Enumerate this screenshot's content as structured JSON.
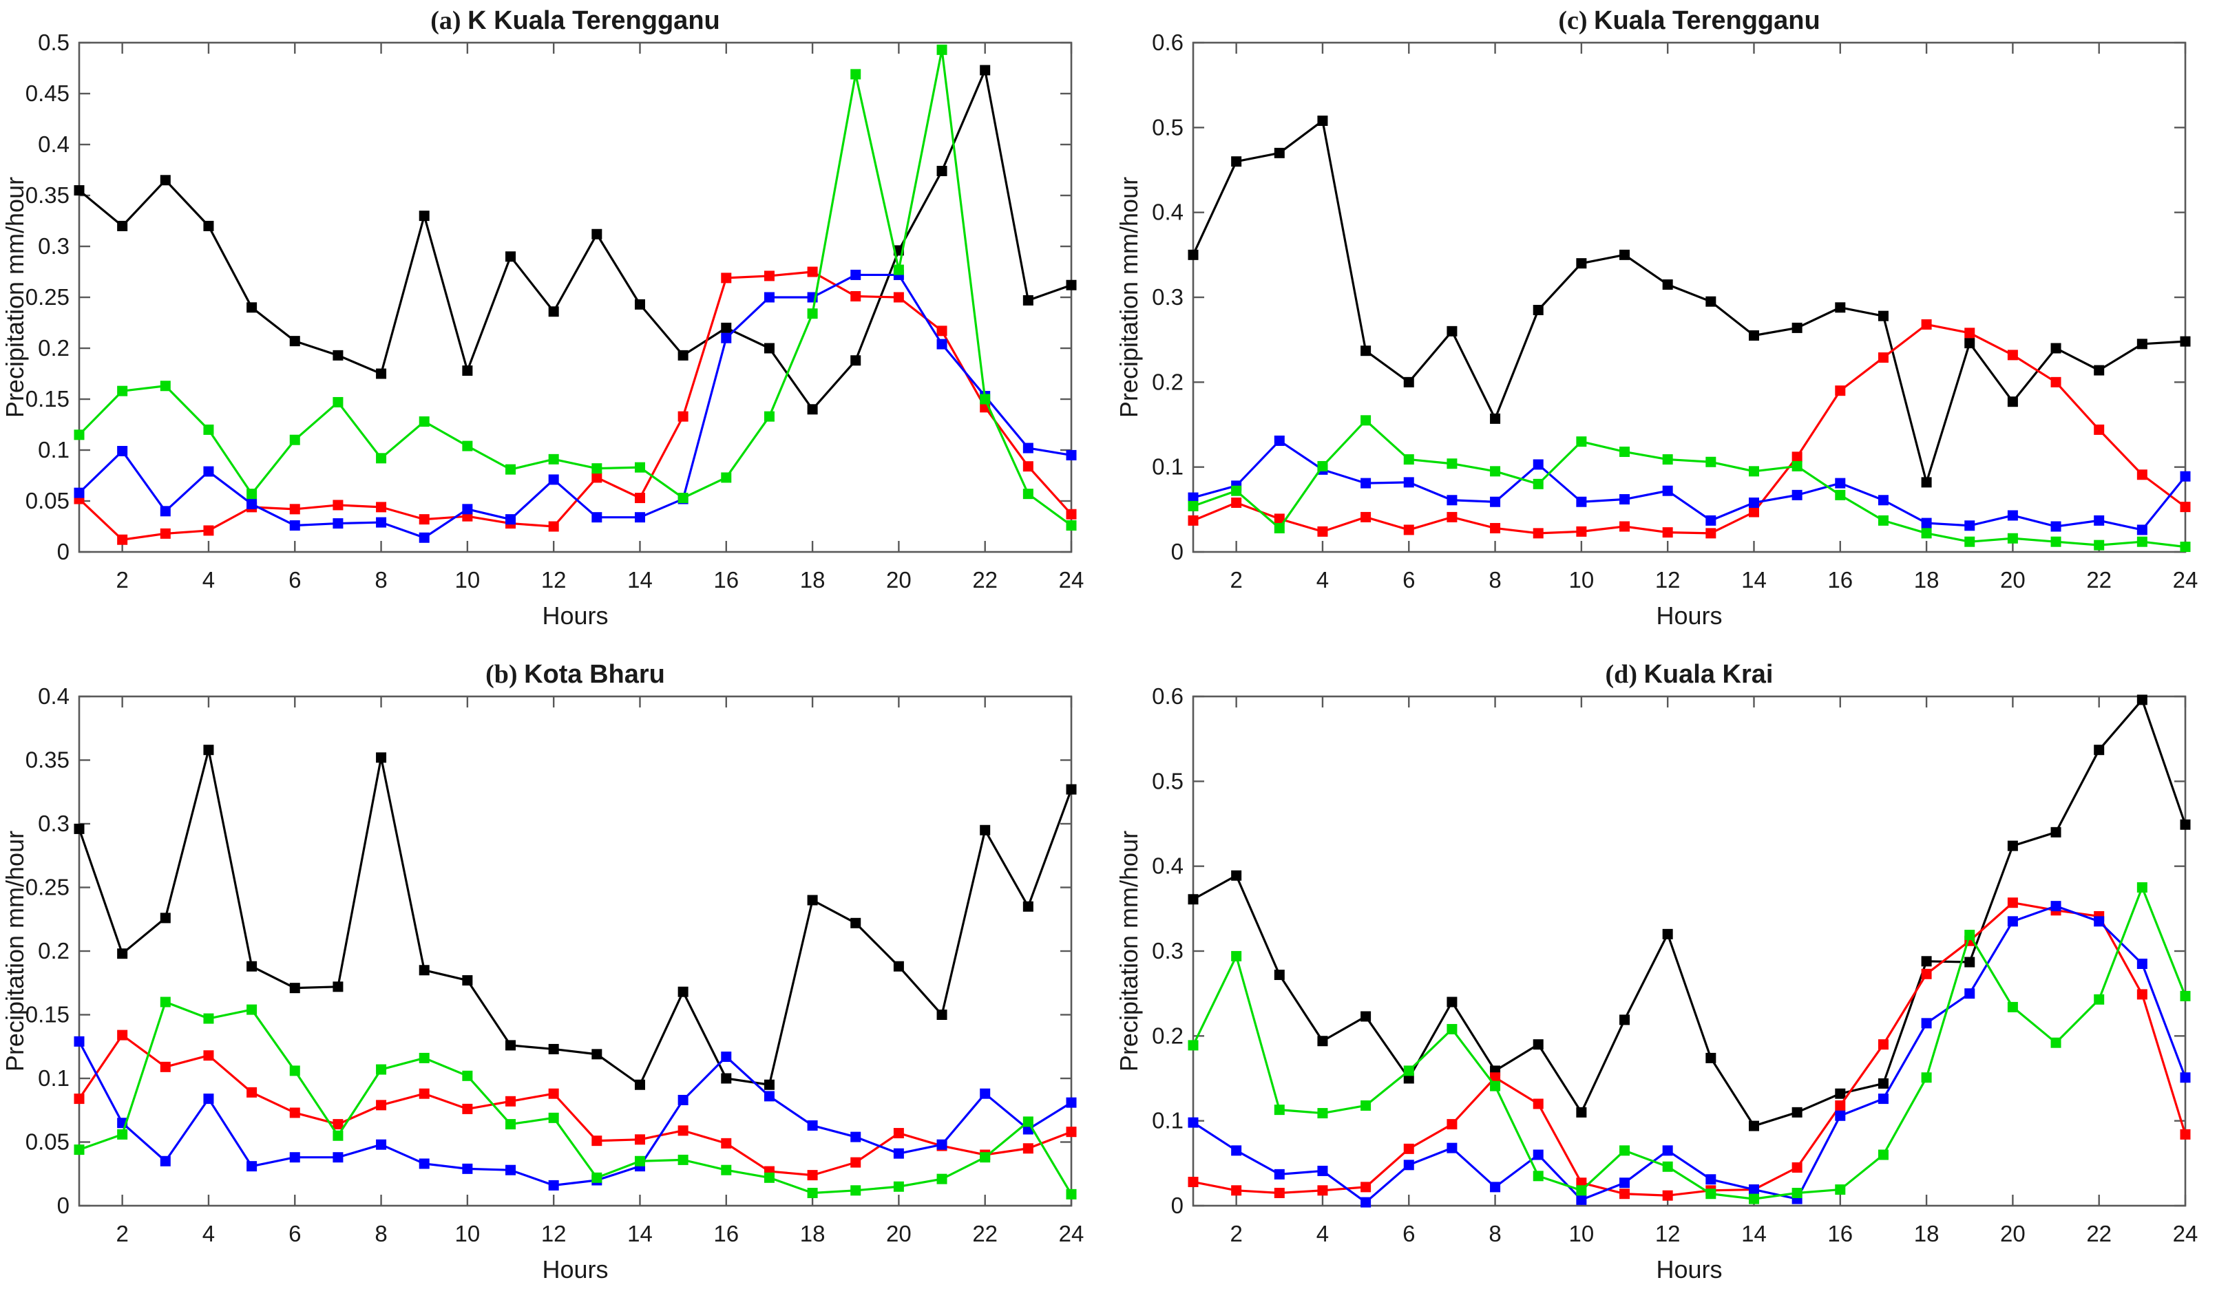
{
  "figure": {
    "background": "#ffffff",
    "axis_color": "#595959",
    "text_color": "#1a1a1a"
  },
  "chart_data": [
    {
      "id": "a",
      "type": "line",
      "title_prefix": "(a)",
      "title": "K Kuala Terengganu",
      "xlabel": "Hours",
      "ylabel": "Precipitation mm/hour",
      "xlim": [
        1,
        24
      ],
      "ylim": [
        0,
        0.5
      ],
      "ystep": 0.05,
      "xticks": [
        2,
        4,
        6,
        8,
        10,
        12,
        14,
        16,
        18,
        20,
        22,
        24
      ],
      "x": [
        1,
        2,
        3,
        4,
        5,
        6,
        7,
        8,
        9,
        10,
        11,
        12,
        13,
        14,
        15,
        16,
        17,
        18,
        19,
        20,
        21,
        22,
        23,
        24
      ],
      "grid": false,
      "legend": "none",
      "series": [
        {
          "name": "black",
          "color": "#000000",
          "values": [
            0.355,
            0.32,
            0.365,
            0.32,
            0.24,
            0.207,
            0.193,
            0.175,
            0.33,
            0.178,
            0.29,
            0.236,
            0.312,
            0.243,
            0.193,
            0.22,
            0.2,
            0.14,
            0.188,
            0.296,
            0.374,
            0.473,
            0.247,
            0.262
          ]
        },
        {
          "name": "red",
          "color": "#ff0000",
          "values": [
            0.052,
            0.012,
            0.018,
            0.021,
            0.044,
            0.042,
            0.046,
            0.044,
            0.032,
            0.035,
            0.028,
            0.025,
            0.073,
            0.053,
            0.133,
            0.269,
            0.271,
            0.275,
            0.251,
            0.25,
            0.217,
            0.142,
            0.084,
            0.037
          ]
        },
        {
          "name": "blue",
          "color": "#0000ff",
          "values": [
            0.058,
            0.099,
            0.04,
            0.079,
            0.047,
            0.026,
            0.028,
            0.029,
            0.014,
            0.042,
            0.032,
            0.071,
            0.034,
            0.034,
            0.052,
            0.21,
            0.25,
            0.25,
            0.272,
            0.272,
            0.204,
            0.153,
            0.102,
            0.095
          ]
        },
        {
          "name": "green",
          "color": "#00dd00",
          "values": [
            0.115,
            0.158,
            0.163,
            0.12,
            0.057,
            0.11,
            0.147,
            0.092,
            0.128,
            0.104,
            0.081,
            0.091,
            0.082,
            0.083,
            0.053,
            0.073,
            0.133,
            0.234,
            0.469,
            0.277,
            0.493,
            0.15,
            0.057,
            0.026
          ]
        }
      ]
    },
    {
      "id": "c",
      "type": "line",
      "title_prefix": "(c)",
      "title": "Kuala Terengganu",
      "xlabel": "Hours",
      "ylabel": "Precipitation mm/hour",
      "xlim": [
        1,
        24
      ],
      "ylim": [
        0,
        0.6
      ],
      "ystep": 0.1,
      "xticks": [
        2,
        4,
        6,
        8,
        10,
        12,
        14,
        16,
        18,
        20,
        22,
        24
      ],
      "x": [
        1,
        2,
        3,
        4,
        5,
        6,
        7,
        8,
        9,
        10,
        11,
        12,
        13,
        14,
        15,
        16,
        17,
        18,
        19,
        20,
        21,
        22,
        23,
        24
      ],
      "grid": false,
      "legend": "none",
      "series": [
        {
          "name": "black",
          "color": "#000000",
          "values": [
            0.35,
            0.46,
            0.47,
            0.508,
            0.237,
            0.2,
            0.26,
            0.157,
            0.285,
            0.34,
            0.35,
            0.315,
            0.295,
            0.255,
            0.264,
            0.288,
            0.278,
            0.082,
            0.246,
            0.177,
            0.24,
            0.214,
            0.245,
            0.248
          ]
        },
        {
          "name": "red",
          "color": "#ff0000",
          "values": [
            0.037,
            0.058,
            0.039,
            0.024,
            0.041,
            0.026,
            0.041,
            0.028,
            0.022,
            0.024,
            0.03,
            0.023,
            0.022,
            0.047,
            0.112,
            0.19,
            0.229,
            0.268,
            0.258,
            0.232,
            0.2,
            0.144,
            0.091,
            0.053
          ]
        },
        {
          "name": "blue",
          "color": "#0000ff",
          "values": [
            0.064,
            0.078,
            0.131,
            0.097,
            0.081,
            0.082,
            0.061,
            0.059,
            0.103,
            0.059,
            0.062,
            0.072,
            0.037,
            0.058,
            0.067,
            0.081,
            0.061,
            0.034,
            0.031,
            0.043,
            0.03,
            0.037,
            0.026,
            0.089
          ]
        },
        {
          "name": "green",
          "color": "#00dd00",
          "values": [
            0.054,
            0.072,
            0.028,
            0.101,
            0.155,
            0.109,
            0.104,
            0.095,
            0.08,
            0.13,
            0.118,
            0.109,
            0.106,
            0.095,
            0.101,
            0.067,
            0.037,
            0.022,
            0.012,
            0.016,
            0.012,
            0.008,
            0.012,
            0.006
          ]
        }
      ]
    },
    {
      "id": "b",
      "type": "line",
      "title_prefix": "(b)",
      "title": "Kota Bharu",
      "xlabel": "Hours",
      "ylabel": "Precipitation mm/hour",
      "xlim": [
        1,
        24
      ],
      "ylim": [
        0,
        0.4
      ],
      "ystep": 0.05,
      "xticks": [
        2,
        4,
        6,
        8,
        10,
        12,
        14,
        16,
        18,
        20,
        22,
        24
      ],
      "x": [
        1,
        2,
        3,
        4,
        5,
        6,
        7,
        8,
        9,
        10,
        11,
        12,
        13,
        14,
        15,
        16,
        17,
        18,
        19,
        20,
        21,
        22,
        23,
        24
      ],
      "grid": false,
      "legend": "none",
      "series": [
        {
          "name": "black",
          "color": "#000000",
          "values": [
            0.296,
            0.198,
            0.226,
            0.358,
            0.188,
            0.171,
            0.172,
            0.352,
            0.185,
            0.177,
            0.126,
            0.123,
            0.119,
            0.095,
            0.168,
            0.1,
            0.095,
            0.24,
            0.222,
            0.188,
            0.15,
            0.295,
            0.235,
            0.327
          ]
        },
        {
          "name": "red",
          "color": "#ff0000",
          "values": [
            0.084,
            0.134,
            0.109,
            0.118,
            0.089,
            0.073,
            0.064,
            0.079,
            0.088,
            0.076,
            0.082,
            0.088,
            0.051,
            0.052,
            0.059,
            0.049,
            0.027,
            0.024,
            0.034,
            0.057,
            0.047,
            0.04,
            0.045,
            0.058
          ]
        },
        {
          "name": "blue",
          "color": "#0000ff",
          "values": [
            0.129,
            0.065,
            0.035,
            0.084,
            0.031,
            0.038,
            0.038,
            0.048,
            0.033,
            0.029,
            0.028,
            0.016,
            0.02,
            0.031,
            0.083,
            0.117,
            0.086,
            0.063,
            0.054,
            0.041,
            0.048,
            0.088,
            0.06,
            0.081
          ]
        },
        {
          "name": "green",
          "color": "#00dd00",
          "values": [
            0.044,
            0.056,
            0.16,
            0.147,
            0.154,
            0.106,
            0.055,
            0.107,
            0.116,
            0.102,
            0.064,
            0.069,
            0.022,
            0.035,
            0.036,
            0.028,
            0.022,
            0.01,
            0.012,
            0.015,
            0.021,
            0.038,
            0.066,
            0.009
          ]
        }
      ]
    },
    {
      "id": "d",
      "type": "line",
      "title_prefix": "(d)",
      "title": "Kuala Krai",
      "xlabel": "Hours",
      "ylabel": "Precipitation mm/hour",
      "xlim": [
        1,
        24
      ],
      "ylim": [
        0,
        0.6
      ],
      "ystep": 0.1,
      "xticks": [
        2,
        4,
        6,
        8,
        10,
        12,
        14,
        16,
        18,
        20,
        22,
        24
      ],
      "x": [
        1,
        2,
        3,
        4,
        5,
        6,
        7,
        8,
        9,
        10,
        11,
        12,
        13,
        14,
        15,
        16,
        17,
        18,
        19,
        20,
        21,
        22,
        23,
        24
      ],
      "grid": false,
      "legend": "none",
      "series": [
        {
          "name": "black",
          "color": "#000000",
          "values": [
            0.361,
            0.389,
            0.272,
            0.194,
            0.223,
            0.15,
            0.24,
            0.159,
            0.19,
            0.11,
            0.219,
            0.32,
            0.174,
            0.094,
            0.11,
            0.132,
            0.144,
            0.288,
            0.287,
            0.424,
            0.44,
            0.537,
            0.596,
            0.449
          ]
        },
        {
          "name": "red",
          "color": "#ff0000",
          "values": [
            0.028,
            0.018,
            0.015,
            0.018,
            0.022,
            0.067,
            0.096,
            0.151,
            0.12,
            0.027,
            0.014,
            0.012,
            0.018,
            0.019,
            0.045,
            0.118,
            0.19,
            0.273,
            0.312,
            0.357,
            0.348,
            0.341,
            0.249,
            0.084
          ]
        },
        {
          "name": "blue",
          "color": "#0000ff",
          "values": [
            0.098,
            0.065,
            0.037,
            0.041,
            0.004,
            0.048,
            0.068,
            0.022,
            0.06,
            0.007,
            0.027,
            0.065,
            0.031,
            0.019,
            0.008,
            0.106,
            0.126,
            0.215,
            0.25,
            0.335,
            0.353,
            0.335,
            0.285,
            0.151
          ]
        },
        {
          "name": "green",
          "color": "#00dd00",
          "values": [
            0.189,
            0.294,
            0.113,
            0.109,
            0.118,
            0.159,
            0.208,
            0.141,
            0.035,
            0.018,
            0.065,
            0.046,
            0.014,
            0.008,
            0.015,
            0.019,
            0.06,
            0.151,
            0.319,
            0.234,
            0.192,
            0.243,
            0.375,
            0.247
          ]
        }
      ]
    }
  ]
}
